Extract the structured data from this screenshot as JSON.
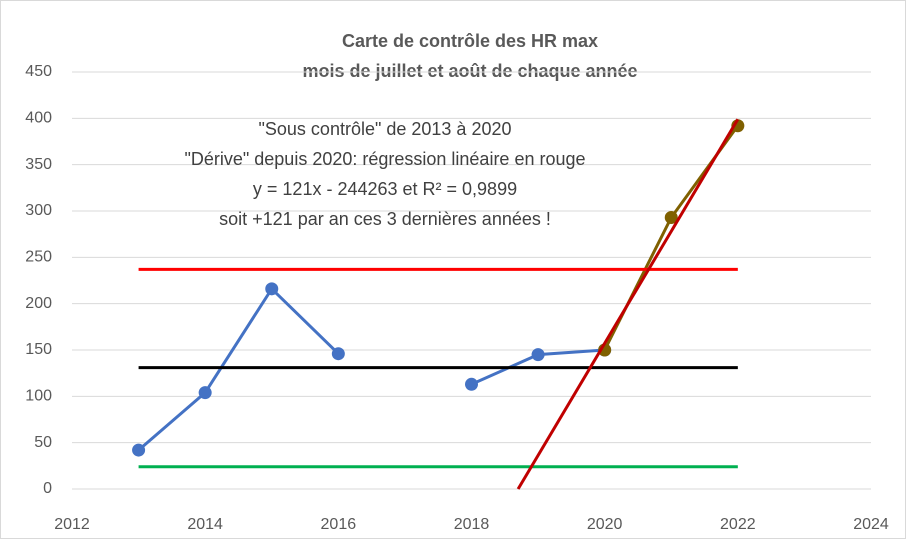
{
  "chart_data": {
    "type": "line",
    "title": "Carte de contrôle des HR max",
    "subtitle": "mois de juillet et août de chaque année",
    "annotations": [
      "\"Sous contrôle\" de 2013 à 2020",
      "\"Dérive\" depuis 2020: régression linéaire en rouge",
      "y = 121x - 244263   et   R² = 0,9899",
      "soit +121 par an ces 3 dernières années !"
    ],
    "xlim": [
      2012,
      2024
    ],
    "xticks": [
      2012,
      2014,
      2016,
      2018,
      2020,
      2022,
      2024
    ],
    "ylim": [
      0,
      450
    ],
    "yticks": [
      0,
      50,
      100,
      150,
      200,
      250,
      300,
      350,
      400,
      450
    ],
    "grid": true,
    "series": [
      {
        "color": "#4472c4",
        "marker": true,
        "x": [
          2013,
          2014,
          2015,
          2016,
          2017,
          2018,
          2019,
          2020
        ],
        "values": [
          42,
          104,
          216,
          146,
          null,
          113,
          145,
          150
        ]
      },
      {
        "color": "#7f6000",
        "marker": true,
        "x": [
          2020,
          2021,
          2022
        ],
        "values": [
          150,
          293,
          392
        ]
      },
      {
        "color": "#ff0000",
        "marker": false,
        "x": [
          2013,
          2022
        ],
        "values": [
          237,
          237
        ]
      },
      {
        "color": "#000000",
        "marker": false,
        "x": [
          2013,
          2022
        ],
        "values": [
          131,
          131
        ]
      },
      {
        "color": "#00b050",
        "marker": false,
        "x": [
          2013,
          2022
        ],
        "values": [
          24,
          24
        ]
      },
      {
        "color": "#c00000",
        "marker": false,
        "x": [
          2018.7,
          2022
        ],
        "values": [
          0,
          399
        ]
      }
    ]
  }
}
